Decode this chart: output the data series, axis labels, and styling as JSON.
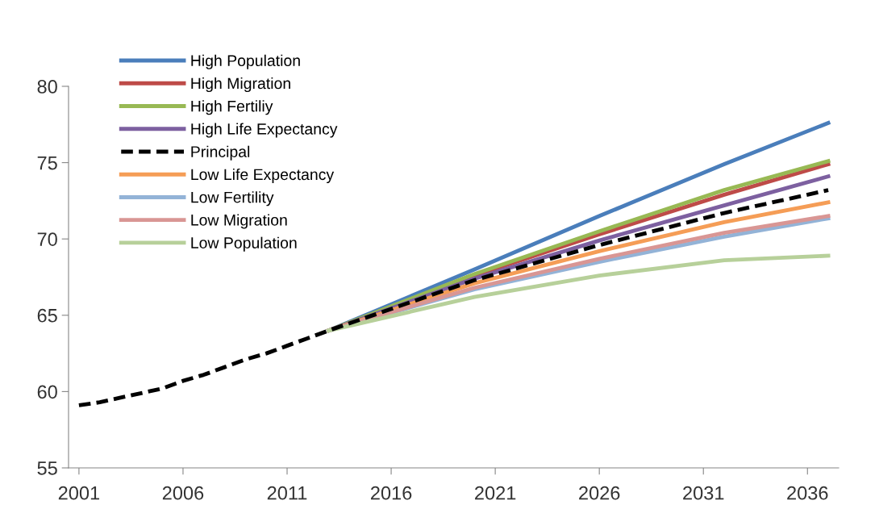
{
  "chart_data": {
    "type": "line",
    "xlim": [
      2000.5,
      2037.5
    ],
    "xticks": [
      2001,
      2006,
      2011,
      2016,
      2021,
      2026,
      2031,
      2036
    ],
    "ylim": [
      55,
      80
    ],
    "yticks": [
      55,
      60,
      65,
      70,
      75,
      80
    ],
    "grid": false,
    "legend": "top left",
    "series": [
      {
        "name": "High Population",
        "color": "#4a7ebb",
        "x": [
          2013,
          2020,
          2026,
          2032,
          2037
        ],
        "values": [
          64.0,
          68.0,
          71.5,
          74.9,
          77.6
        ]
      },
      {
        "name": "High Migration",
        "color": "#be4b48",
        "x": [
          2013,
          2020,
          2026,
          2032,
          2037
        ],
        "values": [
          64.0,
          67.6,
          70.3,
          72.9,
          74.9
        ]
      },
      {
        "name": "High Fertiliy",
        "color": "#98b954",
        "x": [
          2013,
          2020,
          2026,
          2032,
          2037
        ],
        "values": [
          64.0,
          67.7,
          70.5,
          73.2,
          75.1
        ]
      },
      {
        "name": "High Life Expectancy",
        "color": "#7d60a0",
        "x": [
          2013,
          2020,
          2026,
          2032,
          2037
        ],
        "values": [
          64.0,
          67.4,
          69.9,
          72.2,
          74.1
        ]
      },
      {
        "name": "Principal",
        "color": "#000000",
        "line_style": "dashed",
        "x": [
          2001,
          2002,
          2003,
          2004,
          2005,
          2006,
          2007,
          2008,
          2009,
          2010,
          2011,
          2012,
          2013,
          2020,
          2026,
          2032,
          2037
        ],
        "values": [
          59.1,
          59.3,
          59.6,
          59.9,
          60.2,
          60.7,
          61.1,
          61.6,
          62.1,
          62.5,
          63.0,
          63.5,
          64.0,
          67.3,
          69.6,
          71.7,
          73.2
        ]
      },
      {
        "name": "Low Life Expectancy",
        "color": "#f59d56",
        "x": [
          2013,
          2020,
          2026,
          2032,
          2037
        ],
        "values": [
          64.0,
          67.1,
          69.2,
          71.1,
          72.4
        ]
      },
      {
        "name": "Low Fertility",
        "color": "#93b3d7",
        "x": [
          2013,
          2020,
          2026,
          2032,
          2037
        ],
        "values": [
          64.0,
          66.7,
          68.5,
          70.15,
          71.35
        ]
      },
      {
        "name": "Low Migration",
        "color": "#d99694",
        "x": [
          2013,
          2020,
          2026,
          2032,
          2037
        ],
        "values": [
          64.0,
          66.8,
          68.7,
          70.4,
          71.5
        ]
      },
      {
        "name": "Low Population",
        "color": "#b7d09a",
        "x": [
          2013,
          2020,
          2026,
          2032,
          2037
        ],
        "values": [
          64.0,
          66.2,
          67.6,
          68.6,
          68.9
        ]
      }
    ]
  }
}
